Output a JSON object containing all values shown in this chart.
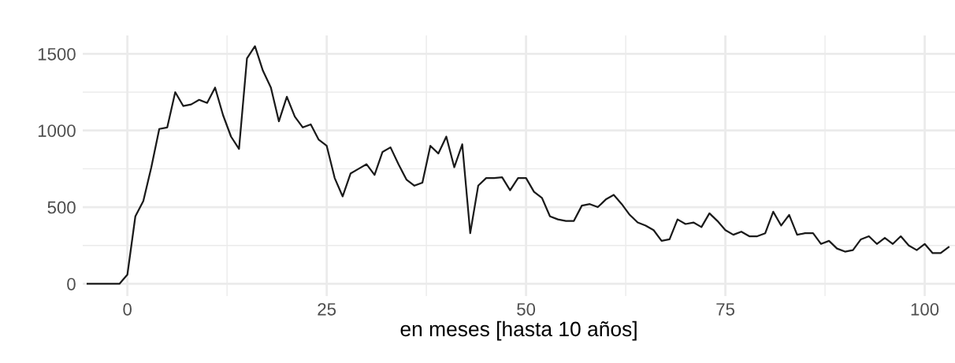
{
  "chart_data": {
    "type": "line",
    "xlabel": "en meses [hasta 10 años]",
    "x": [
      -5,
      -4,
      -3,
      -2,
      -1,
      0,
      1,
      2,
      3,
      4,
      5,
      6,
      7,
      8,
      9,
      10,
      11,
      12,
      13,
      14,
      15,
      16,
      17,
      18,
      19,
      20,
      21,
      22,
      23,
      24,
      25,
      26,
      27,
      28,
      29,
      30,
      31,
      32,
      33,
      34,
      35,
      36,
      37,
      38,
      39,
      40,
      41,
      42,
      43,
      44,
      45,
      46,
      47,
      48,
      49,
      50,
      51,
      52,
      53,
      54,
      55,
      56,
      57,
      58,
      59,
      60,
      61,
      62,
      63,
      64,
      65,
      66,
      67,
      68,
      69,
      70,
      71,
      72,
      73,
      74,
      75,
      76,
      77,
      78,
      79,
      80,
      81,
      82,
      83,
      84,
      85,
      86,
      87,
      88,
      89,
      90,
      91,
      92,
      93,
      94,
      95,
      96,
      97,
      98,
      99,
      100,
      101,
      102,
      103
    ],
    "series": [
      {
        "color": "#1a1a1a",
        "values": [
          0,
          0,
          0,
          0,
          0,
          60,
          440,
          540,
          760,
          1010,
          1020,
          1250,
          1160,
          1170,
          1200,
          1180,
          1280,
          1100,
          960,
          880,
          1470,
          1550,
          1390,
          1280,
          1060,
          1220,
          1090,
          1020,
          1040,
          940,
          900,
          690,
          570,
          720,
          750,
          780,
          710,
          860,
          890,
          780,
          680,
          640,
          660,
          900,
          850,
          960,
          760,
          910,
          330,
          640,
          690,
          690,
          695,
          610,
          690,
          690,
          600,
          560,
          440,
          420,
          410,
          410,
          510,
          520,
          500,
          550,
          580,
          520,
          450,
          400,
          380,
          350,
          280,
          290,
          420,
          390,
          400,
          370,
          460,
          410,
          350,
          320,
          340,
          310,
          310,
          330,
          470,
          380,
          450,
          320,
          330,
          330,
          260,
          280,
          230,
          210,
          220,
          290,
          310,
          260,
          300,
          260,
          310,
          250,
          220,
          260,
          200,
          200,
          240
        ]
      }
    ],
    "xlim": [
      -5.6,
      103.8
    ],
    "ylim": [
      -80,
      1620
    ],
    "xticks": [
      0,
      25,
      50,
      75,
      100
    ],
    "yticks": [
      0,
      500,
      1000,
      1500
    ],
    "grid": true,
    "marker": "none",
    "line_style": "solid"
  }
}
